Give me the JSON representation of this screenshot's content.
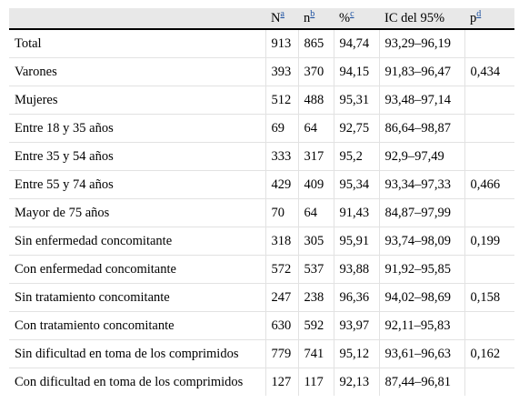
{
  "header": {
    "col0": "",
    "col1": "N",
    "col1_sup": "a",
    "col2": "n",
    "col2_sup": "b",
    "col3": "%",
    "col3_sup": "c",
    "col4": "IC del 95%",
    "col5": "p",
    "col5_sup": "d"
  },
  "rows": [
    {
      "label": "Total",
      "N": "913",
      "n": "865",
      "pct": "94,74",
      "ic": "93,29–96,19",
      "p": ""
    },
    {
      "label": "Varones",
      "N": "393",
      "n": "370",
      "pct": "94,15",
      "ic": "91,83–96,47",
      "p": "0,434"
    },
    {
      "label": "Mujeres",
      "N": "512",
      "n": "488",
      "pct": "95,31",
      "ic": "93,48–97,14",
      "p": ""
    },
    {
      "label": "Entre 18 y 35 años",
      "N": "69",
      "n": "64",
      "pct": "92,75",
      "ic": "86,64–98,87",
      "p": ""
    },
    {
      "label": "Entre 35 y 54 años",
      "N": "333",
      "n": "317",
      "pct": "95,2",
      "ic": "92,9–97,49",
      "p": ""
    },
    {
      "label": "Entre 55 y 74 años",
      "N": "429",
      "n": "409",
      "pct": "95,34",
      "ic": "93,34–97,33",
      "p": "0,466"
    },
    {
      "label": "Mayor de 75 años",
      "N": "70",
      "n": "64",
      "pct": "91,43",
      "ic": "84,87–97,99",
      "p": ""
    },
    {
      "label": "Sin enfermedad concomitante",
      "N": "318",
      "n": "305",
      "pct": "95,91",
      "ic": "93,74–98,09",
      "p": "0,199"
    },
    {
      "label": "Con enfermedad concomitante",
      "N": "572",
      "n": "537",
      "pct": "93,88",
      "ic": "91,92–95,85",
      "p": ""
    },
    {
      "label": "Sin tratamiento concomitante",
      "N": "247",
      "n": "238",
      "pct": "96,36",
      "ic": "94,02–98,69",
      "p": "0,158"
    },
    {
      "label": "Con tratamiento concomitante",
      "N": "630",
      "n": "592",
      "pct": "93,97",
      "ic": "92,11–95,83",
      "p": ""
    },
    {
      "label": "Sin dificultad en toma de los comprimidos",
      "N": "779",
      "n": "741",
      "pct": "95,12",
      "ic": "93,61–96,63",
      "p": "0,162"
    },
    {
      "label": "Con dificultad en toma de los comprimidos",
      "N": "127",
      "n": "117",
      "pct": "92,13",
      "ic": "87,44–96,81",
      "p": ""
    }
  ]
}
